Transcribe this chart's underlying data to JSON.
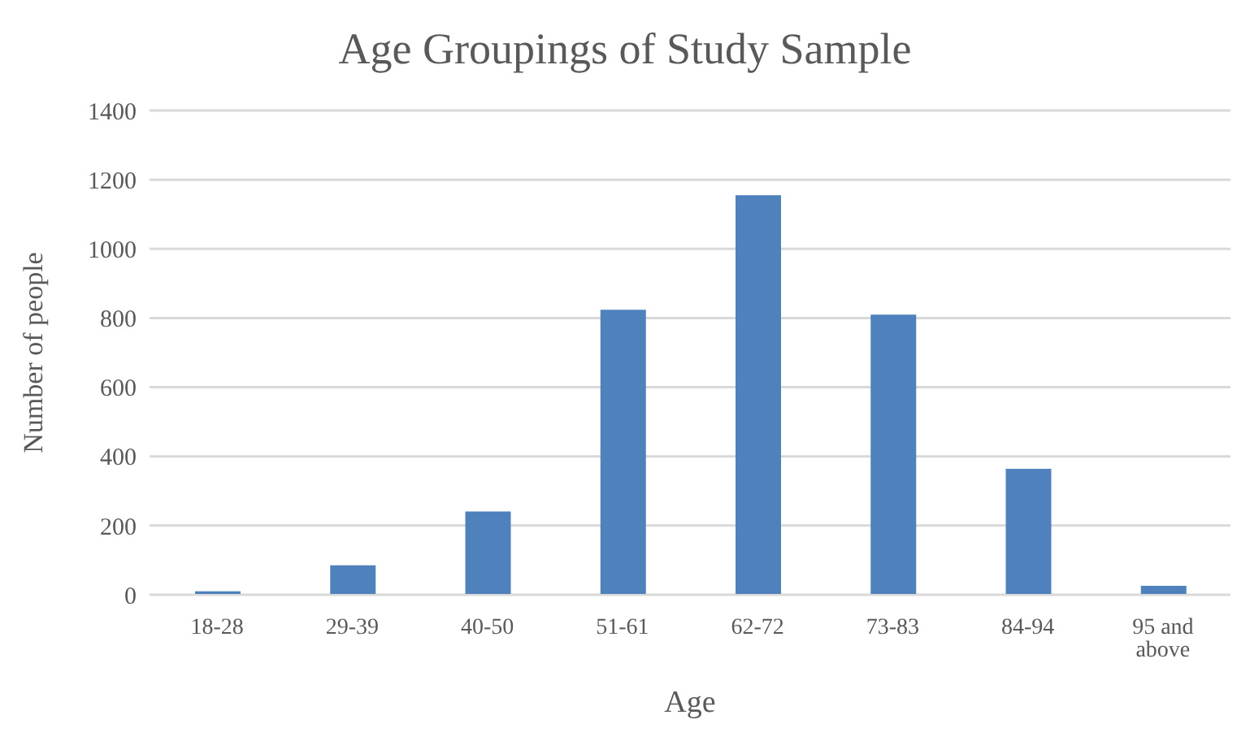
{
  "chart_data": {
    "type": "bar",
    "title": "Age Groupings of Study Sample",
    "xlabel": "Age",
    "ylabel": "Number of people",
    "categories": [
      "18-28",
      "29-39",
      "40-50",
      "51-61",
      "62-72",
      "73-83",
      "84-94",
      "95 and above"
    ],
    "values": [
      10,
      85,
      241,
      824,
      1155,
      810,
      364,
      26
    ],
    "color": "#4f81bd",
    "ylim": [
      0,
      1400
    ],
    "yticks": [
      0,
      200,
      400,
      600,
      800,
      1000,
      1200,
      1400
    ],
    "grid": "y"
  }
}
